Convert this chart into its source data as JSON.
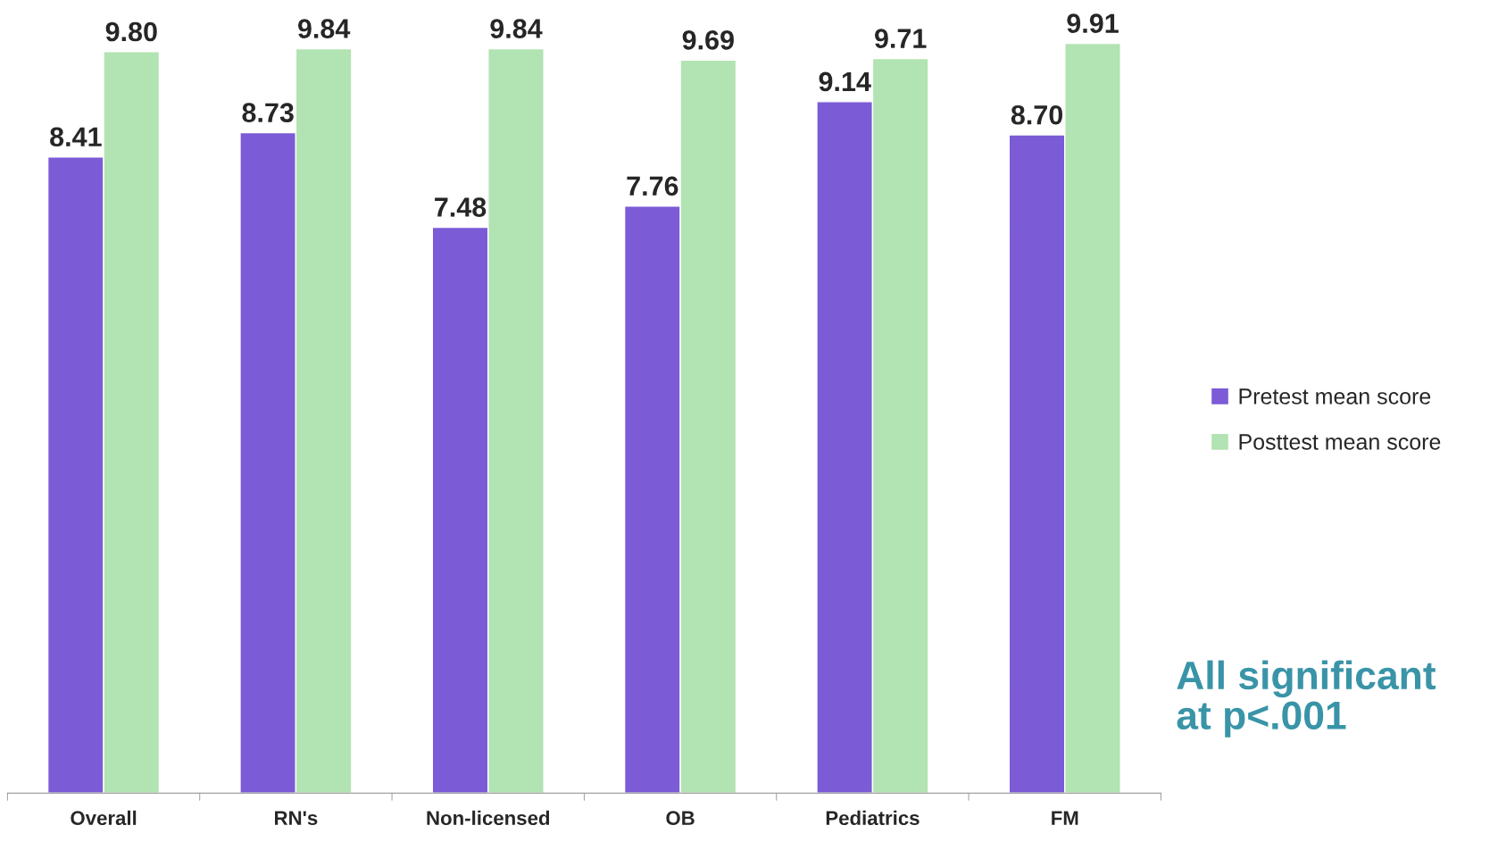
{
  "chart_data": {
    "type": "bar",
    "categories": [
      "Overall",
      "RN's",
      "Non-licensed",
      "OB",
      "Pediatrics",
      "FM"
    ],
    "series": [
      {
        "name": "Pretest mean score",
        "color": "#7b5bd6",
        "values": [
          8.41,
          8.73,
          7.48,
          7.76,
          9.14,
          8.7
        ],
        "value_labels": [
          "8.41",
          "8.73",
          "7.48",
          "7.76",
          "9.14",
          "8.70"
        ]
      },
      {
        "name": "Posttest mean score",
        "color": "#b2e3b2",
        "values": [
          9.8,
          9.84,
          9.84,
          9.69,
          9.71,
          9.91
        ],
        "value_labels": [
          "9.80",
          "9.84",
          "9.84",
          "9.69",
          "9.71",
          "9.91"
        ]
      }
    ],
    "tick_labels": "x",
    "legend": "right",
    "grid": false,
    "annotations": [
      "All significant\nat p<.001"
    ]
  }
}
